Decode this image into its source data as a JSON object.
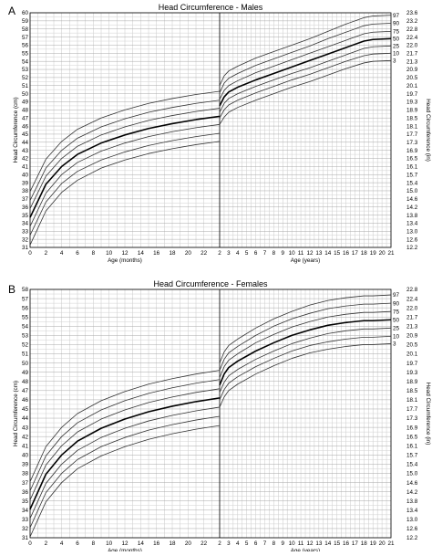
{
  "panel_labels": [
    "A",
    "B"
  ],
  "chart_data": [
    {
      "type": "line",
      "title": "Head Circumference - Males",
      "left_axis_label": "Head Circumference (cm)",
      "right_axis_label": "Head Circumference (in)",
      "infant_xlabel": "Age (months)",
      "child_xlabel": "Age (years)",
      "infant_x_ticks": [
        "0",
        "2",
        "4",
        "6",
        "8",
        "10",
        "12",
        "14",
        "16",
        "18",
        "20",
        "22",
        "2"
      ],
      "child_x_ticks": [
        "3",
        "4",
        "5",
        "6",
        "7",
        "8",
        "9",
        "10",
        "11",
        "12",
        "13",
        "14",
        "15",
        "16",
        "17",
        "18",
        "19",
        "20",
        "21"
      ],
      "infant_x_range_months": [
        0,
        24
      ],
      "child_x_range_years": [
        2,
        21
      ],
      "ylim_cm": [
        31,
        60
      ],
      "y_ticks_cm": [
        "31",
        "32",
        "33",
        "34",
        "35",
        "36",
        "37",
        "38",
        "39",
        "40",
        "41",
        "42",
        "43",
        "44",
        "45",
        "46",
        "47",
        "48",
        "49",
        "50",
        "51",
        "52",
        "53",
        "54",
        "55",
        "56",
        "57",
        "58",
        "59",
        "60"
      ],
      "right_ticks_in": [
        "12.2",
        "12.6",
        "13.0",
        "13.4",
        "13.8",
        "14.2",
        "14.6",
        "15.0",
        "15.4",
        "15.7",
        "16.1",
        "16.5",
        "16.9",
        "17.3",
        "17.7",
        "18.1",
        "18.5",
        "18.9",
        "19.3",
        "19.7",
        "20.1",
        "20.5",
        "20.9",
        "21.3",
        "21.7",
        "22.0",
        "22.4",
        "22.8",
        "23.2",
        "23.6"
      ],
      "percentile_labels": [
        "97",
        "90",
        "75",
        "50",
        "25",
        "10",
        "3"
      ],
      "grid": true,
      "infant_series": {
        "x_months": [
          0,
          2,
          4,
          6,
          9,
          12,
          15,
          18,
          21,
          24
        ],
        "series": [
          {
            "name": "97",
            "values": [
              37.9,
              41.9,
              44.1,
              45.6,
              47.0,
              48.0,
              48.8,
              49.4,
              49.9,
              50.3
            ]
          },
          {
            "name": "90",
            "values": [
              36.8,
              40.8,
              43.0,
              44.5,
              45.9,
              46.9,
              47.7,
              48.3,
              48.8,
              49.2
            ]
          },
          {
            "name": "75",
            "values": [
              35.8,
              39.8,
              42.0,
              43.5,
              44.9,
              45.9,
              46.7,
              47.3,
              47.8,
              48.2
            ]
          },
          {
            "name": "50",
            "values": [
              34.7,
              38.8,
              41.0,
              42.5,
              43.9,
              44.9,
              45.7,
              46.3,
              46.8,
              47.2
            ]
          },
          {
            "name": "25",
            "values": [
              33.6,
              37.7,
              40.0,
              41.5,
              42.9,
              43.9,
              44.7,
              45.3,
              45.8,
              46.2
            ]
          },
          {
            "name": "10",
            "values": [
              32.5,
              36.6,
              38.9,
              40.4,
              41.8,
              42.8,
              43.6,
              44.2,
              44.7,
              45.1
            ]
          },
          {
            "name": "3",
            "values": [
              31.3,
              35.5,
              37.8,
              39.3,
              40.8,
              41.8,
              42.6,
              43.2,
              43.7,
              44.1
            ]
          }
        ]
      },
      "child_series": {
        "x_years": [
          2,
          2.5,
          3,
          4,
          6,
          8,
          10,
          12,
          14,
          16,
          18,
          19,
          21
        ],
        "series": [
          {
            "name": "97",
            "values": [
              51.0,
              52.2,
              52.8,
              53.4,
              54.4,
              55.2,
              56.0,
              56.8,
              57.7,
              58.6,
              59.4,
              59.6,
              59.7
            ]
          },
          {
            "name": "90",
            "values": [
              50.1,
              51.3,
              51.9,
              52.5,
              53.5,
              54.3,
              55.1,
              55.9,
              56.8,
              57.6,
              58.4,
              58.6,
              58.7
            ]
          },
          {
            "name": "75",
            "values": [
              49.3,
              50.4,
              51.0,
              51.6,
              52.6,
              53.4,
              54.2,
              55.0,
              55.8,
              56.6,
              57.4,
              57.6,
              57.7
            ]
          },
          {
            "name": "50",
            "values": [
              48.5,
              49.6,
              50.2,
              50.8,
              51.7,
              52.5,
              53.3,
              54.1,
              54.9,
              55.7,
              56.5,
              56.7,
              56.8
            ]
          },
          {
            "name": "25",
            "values": [
              47.7,
              48.8,
              49.4,
              50.0,
              50.9,
              51.7,
              52.5,
              53.2,
              54.0,
              54.8,
              55.6,
              55.8,
              55.9
            ]
          },
          {
            "name": "10",
            "values": [
              47.0,
              48.0,
              48.6,
              49.2,
              50.1,
              50.9,
              51.7,
              52.4,
              53.2,
              54.0,
              54.7,
              54.9,
              55.0
            ]
          },
          {
            "name": "3",
            "values": [
              46.2,
              47.1,
              47.7,
              48.3,
              49.2,
              50.0,
              50.8,
              51.5,
              52.3,
              53.1,
              53.8,
              54.0,
              54.1
            ]
          }
        ]
      }
    },
    {
      "type": "line",
      "title": "Head Circumference - Females",
      "left_axis_label": "Head Circumference (cm)",
      "right_axis_label": "Head Circumference (in)",
      "infant_xlabel": "Age (months)",
      "child_xlabel": "Age (years)",
      "infant_x_ticks": [
        "0",
        "2",
        "4",
        "6",
        "8",
        "10",
        "12",
        "14",
        "16",
        "18",
        "20",
        "22",
        "2"
      ],
      "child_x_ticks": [
        "3",
        "4",
        "5",
        "6",
        "7",
        "8",
        "9",
        "10",
        "11",
        "12",
        "13",
        "14",
        "15",
        "16",
        "17",
        "18",
        "19",
        "20",
        "21"
      ],
      "infant_x_range_months": [
        0,
        24
      ],
      "child_x_range_years": [
        2,
        21
      ],
      "ylim_cm": [
        31,
        58
      ],
      "y_ticks_cm": [
        "31",
        "32",
        "33",
        "34",
        "35",
        "36",
        "37",
        "38",
        "39",
        "40",
        "41",
        "42",
        "43",
        "44",
        "45",
        "46",
        "47",
        "48",
        "49",
        "50",
        "51",
        "52",
        "53",
        "54",
        "55",
        "56",
        "57",
        "58"
      ],
      "right_ticks_in": [
        "12.2",
        "12.6",
        "13.0",
        "13.4",
        "13.8",
        "14.2",
        "14.6",
        "15.0",
        "15.4",
        "15.7",
        "16.1",
        "16.5",
        "16.9",
        "17.3",
        "17.7",
        "18.1",
        "18.5",
        "18.9",
        "19.3",
        "19.7",
        "20.1",
        "20.5",
        "20.9",
        "21.3",
        "21.7",
        "22.0",
        "22.4",
        "22.8"
      ],
      "percentile_labels": [
        "97",
        "90",
        "75",
        "50",
        "25",
        "10",
        "3"
      ],
      "grid": true,
      "infant_series": {
        "x_months": [
          0,
          2,
          4,
          6,
          9,
          12,
          15,
          18,
          21,
          24
        ],
        "series": [
          {
            "name": "97",
            "values": [
              37.1,
              40.9,
              43.0,
              44.5,
              45.9,
              46.9,
              47.7,
              48.3,
              48.8,
              49.2
            ]
          },
          {
            "name": "90",
            "values": [
              36.1,
              39.9,
              42.0,
              43.5,
              44.9,
              45.9,
              46.7,
              47.3,
              47.8,
              48.2
            ]
          },
          {
            "name": "75",
            "values": [
              35.1,
              38.9,
              41.0,
              42.5,
              43.9,
              44.9,
              45.7,
              46.3,
              46.8,
              47.2
            ]
          },
          {
            "name": "50",
            "values": [
              34.1,
              37.9,
              40.0,
              41.5,
              42.9,
              43.9,
              44.7,
              45.3,
              45.8,
              46.2
            ]
          },
          {
            "name": "25",
            "values": [
              33.1,
              36.9,
              39.0,
              40.5,
              41.9,
              42.9,
              43.7,
              44.3,
              44.8,
              45.2
            ]
          },
          {
            "name": "10",
            "values": [
              32.1,
              35.9,
              38.0,
              39.5,
              40.9,
              41.9,
              42.7,
              43.3,
              43.8,
              44.2
            ]
          },
          {
            "name": "3",
            "values": [
              31.1,
              34.9,
              37.0,
              38.5,
              39.9,
              40.9,
              41.7,
              42.3,
              42.8,
              43.2
            ]
          }
        ]
      },
      "child_series": {
        "x_years": [
          2,
          2.5,
          3,
          4,
          6,
          8,
          10,
          12,
          14,
          16,
          18,
          19,
          21
        ],
        "series": [
          {
            "name": "97",
            "values": [
              50.0,
              51.2,
              51.9,
              52.6,
              53.8,
              54.8,
              55.6,
              56.3,
              56.8,
              57.1,
              57.3,
              57.3,
              57.4
            ]
          },
          {
            "name": "90",
            "values": [
              49.2,
              50.4,
              51.1,
              51.8,
              53.0,
              54.0,
              54.8,
              55.4,
              55.9,
              56.2,
              56.4,
              56.4,
              56.5
            ]
          },
          {
            "name": "75",
            "values": [
              48.4,
              49.6,
              50.3,
              51.0,
              52.2,
              53.1,
              53.9,
              54.5,
              55.0,
              55.3,
              55.5,
              55.5,
              55.6
            ]
          },
          {
            "name": "50",
            "values": [
              47.6,
              48.8,
              49.5,
              50.2,
              51.3,
              52.2,
              53.0,
              53.6,
              54.1,
              54.4,
              54.6,
              54.6,
              54.7
            ]
          },
          {
            "name": "25",
            "values": [
              46.8,
              47.9,
              48.6,
              49.3,
              50.4,
              51.3,
              52.1,
              52.7,
              53.2,
              53.5,
              53.7,
              53.7,
              53.8
            ]
          },
          {
            "name": "10",
            "values": [
              46.0,
              47.1,
              47.8,
              48.5,
              49.6,
              50.5,
              51.3,
              51.9,
              52.3,
              52.6,
              52.8,
              52.8,
              52.9
            ]
          },
          {
            "name": "3",
            "values": [
              45.2,
              46.3,
              47.0,
              47.7,
              48.8,
              49.7,
              50.5,
              51.1,
              51.5,
              51.8,
              52.0,
              52.0,
              52.1
            ]
          }
        ]
      }
    }
  ]
}
